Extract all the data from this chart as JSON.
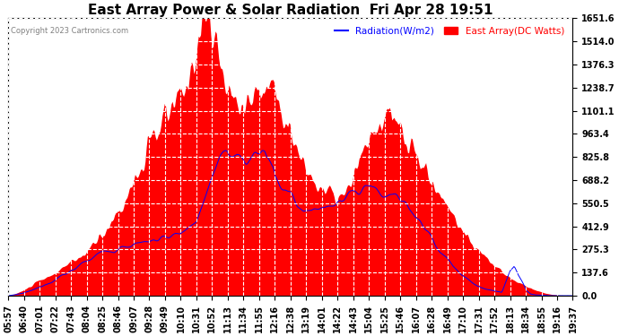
{
  "title": "East Array Power & Solar Radiation  Fri Apr 28 19:51",
  "copyright": "Copyright 2023 Cartronics.com",
  "legend_radiation": "Radiation(W/m2)",
  "legend_east_array": "East Array(DC Watts)",
  "legend_radiation_color": "blue",
  "legend_east_array_color": "red",
  "background_color": "#ffffff",
  "plot_bg_color": "#ffffff",
  "y_ticks": [
    0.0,
    137.6,
    275.3,
    412.9,
    550.5,
    688.2,
    825.8,
    963.4,
    1101.1,
    1238.7,
    1376.3,
    1514.0,
    1651.6
  ],
  "y_max": 1651.6,
  "x_labels": [
    "05:57",
    "06:40",
    "07:01",
    "07:22",
    "07:43",
    "08:04",
    "08:25",
    "08:46",
    "09:07",
    "09:28",
    "09:49",
    "10:10",
    "10:31",
    "10:52",
    "11:13",
    "11:34",
    "11:55",
    "12:16",
    "12:38",
    "13:19",
    "14:01",
    "14:22",
    "14:43",
    "15:04",
    "15:25",
    "15:46",
    "16:07",
    "16:28",
    "16:49",
    "17:10",
    "17:31",
    "17:52",
    "18:13",
    "18:34",
    "18:55",
    "19:16",
    "19:37"
  ],
  "title_fontsize": 11,
  "axis_fontsize": 7,
  "grid_color": "#cccccc",
  "grid_style": "--",
  "fill_color_east": "red",
  "line_color_radiation": "blue",
  "fill_alpha": 1.0,
  "east_array_keypoints": [
    [
      5.95,
      0
    ],
    [
      6.1,
      10
    ],
    [
      6.3,
      30
    ],
    [
      6.5,
      60
    ],
    [
      6.7,
      90
    ],
    [
      7.0,
      120
    ],
    [
      7.2,
      160
    ],
    [
      7.5,
      200
    ],
    [
      7.8,
      250
    ],
    [
      8.0,
      300
    ],
    [
      8.2,
      360
    ],
    [
      8.4,
      420
    ],
    [
      8.6,
      500
    ],
    [
      8.8,
      580
    ],
    [
      9.0,
      680
    ],
    [
      9.2,
      780
    ],
    [
      9.4,
      900
    ],
    [
      9.6,
      1000
    ],
    [
      9.8,
      1080
    ],
    [
      10.0,
      1150
    ],
    [
      10.2,
      1200
    ],
    [
      10.3,
      1280
    ],
    [
      10.4,
      1380
    ],
    [
      10.5,
      1500
    ],
    [
      10.55,
      1580
    ],
    [
      10.6,
      1620
    ],
    [
      10.65,
      1640
    ],
    [
      10.7,
      1651
    ],
    [
      10.75,
      1645
    ],
    [
      10.8,
      1630
    ],
    [
      10.85,
      1580
    ],
    [
      10.9,
      1540
    ],
    [
      10.95,
      1490
    ],
    [
      11.0,
      1430
    ],
    [
      11.05,
      1390
    ],
    [
      11.1,
      1350
    ],
    [
      11.15,
      1300
    ],
    [
      11.2,
      1260
    ],
    [
      11.25,
      1220
    ],
    [
      11.3,
      1200
    ],
    [
      11.35,
      1180
    ],
    [
      11.4,
      1170
    ],
    [
      11.5,
      1160
    ],
    [
      11.6,
      1150
    ],
    [
      11.7,
      1160
    ],
    [
      11.8,
      1170
    ],
    [
      11.9,
      1180
    ],
    [
      12.0,
      1200
    ],
    [
      12.1,
      1210
    ],
    [
      12.16,
      1230
    ],
    [
      12.2,
      1250
    ],
    [
      12.3,
      1260
    ],
    [
      12.38,
      1270
    ],
    [
      12.4,
      1240
    ],
    [
      12.5,
      1180
    ],
    [
      12.6,
      1100
    ],
    [
      12.7,
      1020
    ],
    [
      12.8,
      950
    ],
    [
      12.9,
      880
    ],
    [
      13.0,
      820
    ],
    [
      13.1,
      780
    ],
    [
      13.2,
      740
    ],
    [
      13.3,
      700
    ],
    [
      13.4,
      660
    ],
    [
      13.5,
      640
    ],
    [
      13.6,
      620
    ],
    [
      13.7,
      610
    ],
    [
      13.8,
      600
    ],
    [
      13.9,
      590
    ],
    [
      14.0,
      580
    ],
    [
      14.1,
      600
    ],
    [
      14.2,
      640
    ],
    [
      14.3,
      700
    ],
    [
      14.4,
      760
    ],
    [
      14.5,
      820
    ],
    [
      14.6,
      880
    ],
    [
      14.7,
      940
    ],
    [
      14.8,
      980
    ],
    [
      14.9,
      1020
    ],
    [
      15.0,
      1040
    ],
    [
      15.1,
      1060
    ],
    [
      15.2,
      1050
    ],
    [
      15.3,
      1030
    ],
    [
      15.4,
      1000
    ],
    [
      15.5,
      960
    ],
    [
      15.6,
      920
    ],
    [
      15.7,
      880
    ],
    [
      15.8,
      840
    ],
    [
      15.9,
      800
    ],
    [
      16.0,
      760
    ],
    [
      16.1,
      720
    ],
    [
      16.2,
      680
    ],
    [
      16.3,
      640
    ],
    [
      16.5,
      560
    ],
    [
      16.7,
      480
    ],
    [
      16.9,
      410
    ],
    [
      17.1,
      340
    ],
    [
      17.3,
      280
    ],
    [
      17.5,
      230
    ],
    [
      17.7,
      180
    ],
    [
      17.9,
      140
    ],
    [
      18.1,
      110
    ],
    [
      18.3,
      80
    ],
    [
      18.5,
      55
    ],
    [
      18.7,
      35
    ],
    [
      18.9,
      18
    ],
    [
      19.1,
      8
    ],
    [
      19.3,
      3
    ],
    [
      19.5,
      1
    ],
    [
      19.62,
      0
    ]
  ],
  "radiation_keypoints": [
    [
      5.95,
      0
    ],
    [
      6.1,
      5
    ],
    [
      6.3,
      15
    ],
    [
      6.5,
      30
    ],
    [
      6.7,
      50
    ],
    [
      7.0,
      80
    ],
    [
      7.2,
      110
    ],
    [
      7.5,
      150
    ],
    [
      7.8,
      200
    ],
    [
      8.0,
      230
    ],
    [
      8.2,
      255
    ],
    [
      8.4,
      270
    ],
    [
      8.6,
      285
    ],
    [
      8.8,
      295
    ],
    [
      9.0,
      305
    ],
    [
      9.2,
      315
    ],
    [
      9.4,
      325
    ],
    [
      9.6,
      335
    ],
    [
      9.8,
      345
    ],
    [
      10.0,
      360
    ],
    [
      10.2,
      375
    ],
    [
      10.3,
      390
    ],
    [
      10.4,
      410
    ],
    [
      10.5,
      440
    ],
    [
      10.55,
      470
    ],
    [
      10.6,
      500
    ],
    [
      10.65,
      530
    ],
    [
      10.7,
      560
    ],
    [
      10.75,
      590
    ],
    [
      10.8,
      620
    ],
    [
      10.85,
      660
    ],
    [
      10.9,
      700
    ],
    [
      10.95,
      740
    ],
    [
      11.0,
      780
    ],
    [
      11.05,
      820
    ],
    [
      11.1,
      850
    ],
    [
      11.15,
      870
    ],
    [
      11.2,
      875
    ],
    [
      11.25,
      880
    ],
    [
      11.3,
      875
    ],
    [
      11.35,
      865
    ],
    [
      11.4,
      850
    ],
    [
      11.5,
      820
    ],
    [
      11.6,
      790
    ],
    [
      11.7,
      800
    ],
    [
      11.8,
      820
    ],
    [
      11.9,
      840
    ],
    [
      12.0,
      860
    ],
    [
      12.1,
      880
    ],
    [
      12.16,
      870
    ],
    [
      12.2,
      840
    ],
    [
      12.3,
      800
    ],
    [
      12.38,
      760
    ],
    [
      12.4,
      720
    ],
    [
      12.5,
      680
    ],
    [
      12.6,
      640
    ],
    [
      12.7,
      610
    ],
    [
      12.8,
      580
    ],
    [
      12.9,
      560
    ],
    [
      13.0,
      540
    ],
    [
      13.1,
      520
    ],
    [
      13.2,
      510
    ],
    [
      13.3,
      500
    ],
    [
      13.4,
      510
    ],
    [
      13.5,
      520
    ],
    [
      13.6,
      530
    ],
    [
      13.7,
      540
    ],
    [
      13.8,
      545
    ],
    [
      13.9,
      550
    ],
    [
      14.0,
      555
    ],
    [
      14.1,
      570
    ],
    [
      14.2,
      580
    ],
    [
      14.3,
      590
    ],
    [
      14.4,
      600
    ],
    [
      14.5,
      610
    ],
    [
      14.6,
      620
    ],
    [
      14.7,
      630
    ],
    [
      14.8,
      625
    ],
    [
      14.9,
      615
    ],
    [
      15.0,
      610
    ],
    [
      15.1,
      605
    ],
    [
      15.2,
      600
    ],
    [
      15.3,
      595
    ],
    [
      15.4,
      580
    ],
    [
      15.5,
      560
    ],
    [
      15.6,
      540
    ],
    [
      15.7,
      510
    ],
    [
      15.8,
      480
    ],
    [
      15.9,
      450
    ],
    [
      16.0,
      420
    ],
    [
      16.1,
      380
    ],
    [
      16.2,
      340
    ],
    [
      16.3,
      300
    ],
    [
      16.5,
      240
    ],
    [
      16.7,
      180
    ],
    [
      16.9,
      130
    ],
    [
      17.1,
      90
    ],
    [
      17.3,
      60
    ],
    [
      17.5,
      40
    ],
    [
      17.7,
      30
    ],
    [
      17.9,
      20
    ],
    [
      18.1,
      150
    ],
    [
      18.2,
      180
    ],
    [
      18.3,
      120
    ],
    [
      18.4,
      80
    ],
    [
      18.5,
      30
    ],
    [
      18.6,
      10
    ],
    [
      18.7,
      5
    ],
    [
      18.9,
      2
    ],
    [
      19.1,
      0
    ],
    [
      19.5,
      0
    ]
  ]
}
